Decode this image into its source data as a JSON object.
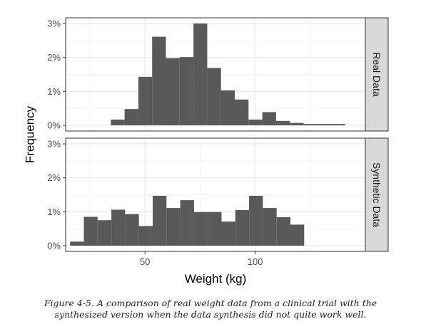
{
  "chart_data": {
    "type": "bar",
    "ylabel": "Frequency",
    "xlabel": "Weight (kg)",
    "x_ticks": [
      50,
      100
    ],
    "xlim": [
      14,
      150
    ],
    "y_ticks": [
      "0%",
      "1%",
      "2%",
      "3%"
    ],
    "ylim": [
      0,
      3.2
    ],
    "bin_width": 6.25,
    "grid": true,
    "colors": {
      "bar": "#595959",
      "grid_major": "#ebebeb",
      "grid_minor": "#f4f4f4",
      "strip_fill": "#d9d9d9",
      "panel_border": "#333333"
    },
    "panels": [
      {
        "strip_label": "Real Data",
        "bin_starts": [
          34.5,
          40.75,
          47,
          53.25,
          59.5,
          65.75,
          72,
          78.25,
          84.5,
          90.75,
          97,
          103.25,
          109.5,
          115.75,
          122,
          128.25,
          134.5
        ],
        "values": [
          0.17,
          0.48,
          1.43,
          2.61,
          1.98,
          2.01,
          3.0,
          1.69,
          1.03,
          0.76,
          0.17,
          0.39,
          0.13,
          0.07,
          0.04,
          0.04,
          0.04
        ]
      },
      {
        "strip_label": "Synthetic Data",
        "bin_starts": [
          16,
          22.25,
          28.5,
          34.75,
          41,
          47.25,
          53.5,
          59.75,
          66,
          72.25,
          78.5,
          84.75,
          91,
          97.25,
          103.5,
          109.75,
          116
        ],
        "values": [
          0.12,
          0.85,
          0.75,
          1.06,
          0.93,
          0.58,
          1.47,
          1.11,
          1.34,
          0.99,
          0.99,
          0.71,
          1.05,
          1.47,
          1.11,
          0.84,
          0.62
        ]
      }
    ]
  },
  "caption": {
    "line1": "Figure 4-5. A comparison of real weight data from a clinical trial with the",
    "line2": "synthesized version when the data synthesis did not quite work well."
  }
}
